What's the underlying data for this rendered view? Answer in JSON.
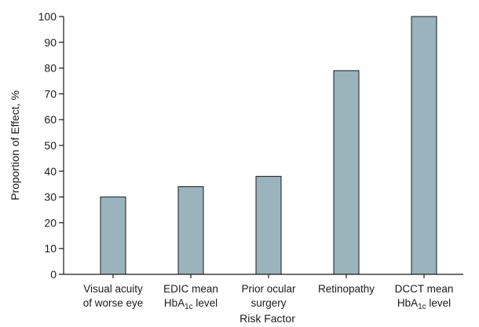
{
  "chart_data": {
    "type": "bar",
    "title": "",
    "xlabel": "Risk Factor",
    "ylabel": "Proportion of Effect, %",
    "ylim": [
      0,
      100
    ],
    "yticks": [
      0,
      10,
      20,
      30,
      40,
      50,
      60,
      70,
      80,
      90,
      100
    ],
    "grid": false,
    "bar_color": "#9bb3bc",
    "categories": [
      {
        "line1": "Visual acuity",
        "line2": "of worse eye"
      },
      {
        "line1": "EDIC mean",
        "line2_pre": "HbA",
        "line2_sub": "1c",
        "line2_post": " level"
      },
      {
        "line1": "Prior ocular",
        "line2": "surgery"
      },
      {
        "line1": "Retinopathy",
        "line2": ""
      },
      {
        "line1": "DCCT mean",
        "line2_pre": "HbA",
        "line2_sub": "1c",
        "line2_post": " level"
      }
    ],
    "values": [
      30,
      34,
      38,
      79,
      100
    ]
  }
}
